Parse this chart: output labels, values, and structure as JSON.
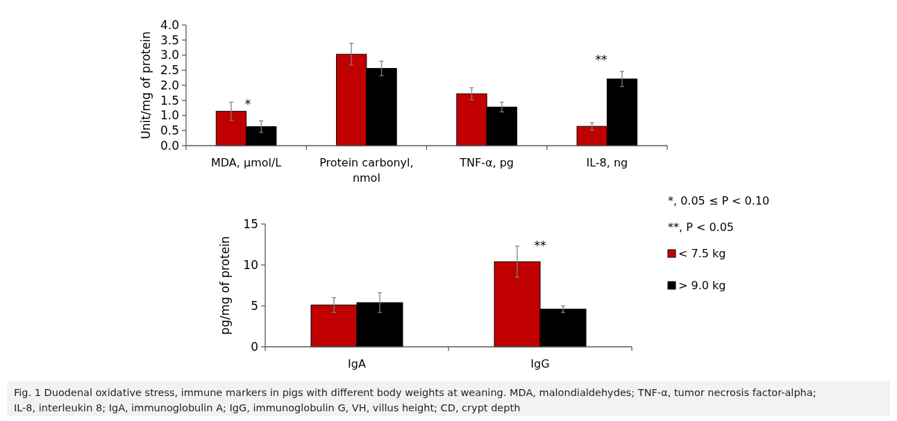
{
  "chart_data": [
    {
      "type": "bar",
      "ylabel": "Unit/mg of protein",
      "categories": [
        "MDA, µmol/L",
        "Protein carbonyl, nmol",
        "TNF-α, pg",
        "IL-8, ng"
      ],
      "series": [
        {
          "color": "#c00000",
          "values": [
            1.14,
            3.03,
            1.72,
            0.64
          ],
          "errors": [
            0.3,
            0.36,
            0.2,
            0.12
          ]
        },
        {
          "color": "#000000",
          "values": [
            0.63,
            2.56,
            1.28,
            2.21
          ],
          "errors": [
            0.19,
            0.24,
            0.16,
            0.25
          ]
        }
      ],
      "ylim": [
        0,
        4
      ],
      "yticks": [
        {
          "value": 0,
          "label": "0.0"
        },
        {
          "value": 0.5,
          "label": "0.5"
        },
        {
          "value": 1,
          "label": "1.0"
        },
        {
          "value": 1.5,
          "label": "1.5"
        },
        {
          "value": 2,
          "label": "2.0"
        },
        {
          "value": 2.5,
          "label": "2.5"
        },
        {
          "value": 3,
          "label": "3.0"
        },
        {
          "value": 3.5,
          "label": "3.5"
        },
        {
          "value": 4,
          "label": "4.0"
        }
      ],
      "grid": false,
      "annotations": [
        "*",
        "**"
      ]
    },
    {
      "type": "bar",
      "ylabel": "pg/mg of protein",
      "categories": [
        "IgA",
        "IgG"
      ],
      "series": [
        {
          "name": "< 7.5 kg",
          "color": "#c00000",
          "values": [
            5.1,
            10.4
          ],
          "errors": [
            0.9,
            1.9
          ]
        },
        {
          "name": "> 9.0 kg",
          "color": "#000000",
          "values": [
            5.4,
            4.6
          ],
          "errors": [
            1.2,
            0.4
          ]
        }
      ],
      "ylim": [
        0,
        15
      ],
      "yticks": [
        0,
        5,
        10,
        15
      ],
      "grid": false,
      "legend": "right",
      "annotations": [
        "**",
        "*, 0.05 ≤ P < 0.10",
        "**, P < 0.05",
        "Fig. 1 Duodenal oxidative stress, immune markers in pigs with different body weights at weaning. MDA, malondialdehydes; TNF-α, tumor necrosis factor-alpha; IL-8, interleukin 8; IgA, immunoglobulin A; IgG, immunoglobulin G, VH, villus height; CD, crypt depth"
      ]
    }
  ]
}
